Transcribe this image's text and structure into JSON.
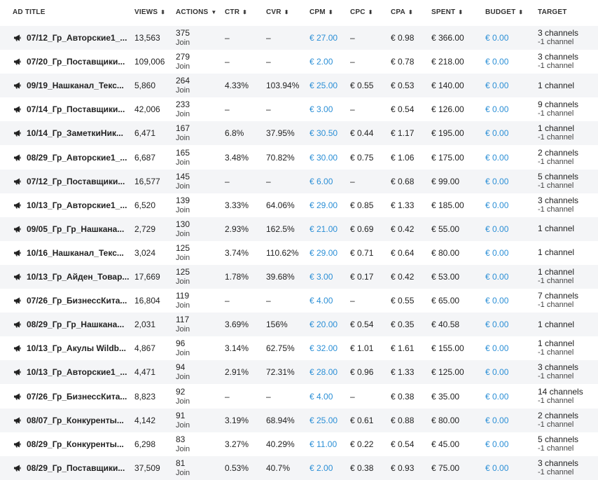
{
  "headers": {
    "title": "AD TITLE",
    "views": "VIEWS",
    "actions": "ACTIONS",
    "ctr": "CTR",
    "cvr": "CVR",
    "cpm": "CPM",
    "cpc": "CPC",
    "cpa": "CPA",
    "spent": "SPENT",
    "budget": "BUDGET",
    "target": "TARGET"
  },
  "icons": {
    "sort": "sort-updown-icon",
    "sort_active": "sort-down-icon",
    "ad": "megaphone-icon"
  },
  "colors": {
    "link_blue": "#2b8fd6",
    "alt_row": "#f4f5f7"
  },
  "rows": [
    {
      "title": "07/12_Гр_Авторские1_...",
      "views": "13,563",
      "actions": "375",
      "action_label": "Join",
      "ctr": "–",
      "cvr": "–",
      "cpm": "€ 27.00",
      "cpc": "–",
      "cpa": "€ 0.98",
      "spent": "€ 366.00",
      "budget": "€ 0.00",
      "target": "3 channels",
      "target_sub": "-1 channel"
    },
    {
      "title": "07/20_Гр_Поставщики...",
      "views": "109,006",
      "actions": "279",
      "action_label": "Join",
      "ctr": "–",
      "cvr": "–",
      "cpm": "€ 2.00",
      "cpc": "–",
      "cpa": "€ 0.78",
      "spent": "€ 218.00",
      "budget": "€ 0.00",
      "target": "3 channels",
      "target_sub": "-1 channel"
    },
    {
      "title": "09/19_Нашканал_Текс...",
      "views": "5,860",
      "actions": "264",
      "action_label": "Join",
      "ctr": "4.33%",
      "cvr": "103.94%",
      "cpm": "€ 25.00",
      "cpc": "€ 0.55",
      "cpa": "€ 0.53",
      "spent": "€ 140.00",
      "budget": "€ 0.00",
      "target": "1 channel",
      "target_sub": ""
    },
    {
      "title": "07/14_Гр_Поставщики...",
      "views": "42,006",
      "actions": "233",
      "action_label": "Join",
      "ctr": "–",
      "cvr": "–",
      "cpm": "€ 3.00",
      "cpc": "–",
      "cpa": "€ 0.54",
      "spent": "€ 126.00",
      "budget": "€ 0.00",
      "target": "9 channels",
      "target_sub": "-1 channel"
    },
    {
      "title": "10/14_Гр_ЗаметкиНик...",
      "views": "6,471",
      "actions": "167",
      "action_label": "Join",
      "ctr": "6.8%",
      "cvr": "37.95%",
      "cpm": "€ 30.50",
      "cpc": "€ 0.44",
      "cpa": "€ 1.17",
      "spent": "€ 195.00",
      "budget": "€ 0.00",
      "target": "1 channel",
      "target_sub": "-1 channel"
    },
    {
      "title": "08/29_Гр_Авторские1_...",
      "views": "6,687",
      "actions": "165",
      "action_label": "Join",
      "ctr": "3.48%",
      "cvr": "70.82%",
      "cpm": "€ 30.00",
      "cpc": "€ 0.75",
      "cpa": "€ 1.06",
      "spent": "€ 175.00",
      "budget": "€ 0.00",
      "target": "2 channels",
      "target_sub": "-1 channel"
    },
    {
      "title": "07/12_Гр_Поставщики...",
      "views": "16,577",
      "actions": "145",
      "action_label": "Join",
      "ctr": "–",
      "cvr": "–",
      "cpm": "€ 6.00",
      "cpc": "–",
      "cpa": "€ 0.68",
      "spent": "€ 99.00",
      "budget": "€ 0.00",
      "target": "5 channels",
      "target_sub": "-1 channel"
    },
    {
      "title": "10/13_Гр_Авторские1_...",
      "views": "6,520",
      "actions": "139",
      "action_label": "Join",
      "ctr": "3.33%",
      "cvr": "64.06%",
      "cpm": "€ 29.00",
      "cpc": "€ 0.85",
      "cpa": "€ 1.33",
      "spent": "€ 185.00",
      "budget": "€ 0.00",
      "target": "3 channels",
      "target_sub": "-1 channel"
    },
    {
      "title": "09/05_Гр_Гр_Нашкана...",
      "views": "2,729",
      "actions": "130",
      "action_label": "Join",
      "ctr": "2.93%",
      "cvr": "162.5%",
      "cpm": "€ 21.00",
      "cpc": "€ 0.69",
      "cpa": "€ 0.42",
      "spent": "€ 55.00",
      "budget": "€ 0.00",
      "target": "1 channel",
      "target_sub": ""
    },
    {
      "title": "10/16_Нашканал_Текс...",
      "views": "3,024",
      "actions": "125",
      "action_label": "Join",
      "ctr": "3.74%",
      "cvr": "110.62%",
      "cpm": "€ 29.00",
      "cpc": "€ 0.71",
      "cpa": "€ 0.64",
      "spent": "€ 80.00",
      "budget": "€ 0.00",
      "target": "1 channel",
      "target_sub": ""
    },
    {
      "title": "10/13_Гр_Айден_Товар...",
      "views": "17,669",
      "actions": "125",
      "action_label": "Join",
      "ctr": "1.78%",
      "cvr": "39.68%",
      "cpm": "€ 3.00",
      "cpc": "€ 0.17",
      "cpa": "€ 0.42",
      "spent": "€ 53.00",
      "budget": "€ 0.00",
      "target": "1 channel",
      "target_sub": "-1 channel"
    },
    {
      "title": "07/26_Гр_БизнессКита...",
      "views": "16,804",
      "actions": "119",
      "action_label": "Join",
      "ctr": "–",
      "cvr": "–",
      "cpm": "€ 4.00",
      "cpc": "–",
      "cpa": "€ 0.55",
      "spent": "€ 65.00",
      "budget": "€ 0.00",
      "target": "7 channels",
      "target_sub": "-1 channel"
    },
    {
      "title": "08/29_Гр_Гр_Нашкана...",
      "views": "2,031",
      "actions": "117",
      "action_label": "Join",
      "ctr": "3.69%",
      "cvr": "156%",
      "cpm": "€ 20.00",
      "cpc": "€ 0.54",
      "cpa": "€ 0.35",
      "spent": "€ 40.58",
      "budget": "€ 0.00",
      "target": "1 channel",
      "target_sub": ""
    },
    {
      "title": "10/13_Гр_Акулы Wildb...",
      "views": "4,867",
      "actions": "96",
      "action_label": "Join",
      "ctr": "3.14%",
      "cvr": "62.75%",
      "cpm": "€ 32.00",
      "cpc": "€ 1.01",
      "cpa": "€ 1.61",
      "spent": "€ 155.00",
      "budget": "€ 0.00",
      "target": "1 channel",
      "target_sub": "-1 channel"
    },
    {
      "title": "10/13_Гр_Авторские1_...",
      "views": "4,471",
      "actions": "94",
      "action_label": "Join",
      "ctr": "2.91%",
      "cvr": "72.31%",
      "cpm": "€ 28.00",
      "cpc": "€ 0.96",
      "cpa": "€ 1.33",
      "spent": "€ 125.00",
      "budget": "€ 0.00",
      "target": "3 channels",
      "target_sub": "-1 channel"
    },
    {
      "title": "07/26_Гр_БизнессКита...",
      "views": "8,823",
      "actions": "92",
      "action_label": "Join",
      "ctr": "–",
      "cvr": "–",
      "cpm": "€ 4.00",
      "cpc": "–",
      "cpa": "€ 0.38",
      "spent": "€ 35.00",
      "budget": "€ 0.00",
      "target": "14 channels",
      "target_sub": "-1 channel"
    },
    {
      "title": "08/07_Гр_Конкуренты...",
      "views": "4,142",
      "actions": "91",
      "action_label": "Join",
      "ctr": "3.19%",
      "cvr": "68.94%",
      "cpm": "€ 25.00",
      "cpc": "€ 0.61",
      "cpa": "€ 0.88",
      "spent": "€ 80.00",
      "budget": "€ 0.00",
      "target": "2 channels",
      "target_sub": "-1 channel"
    },
    {
      "title": "08/29_Гр_Конкуренты...",
      "views": "6,298",
      "actions": "83",
      "action_label": "Join",
      "ctr": "3.27%",
      "cvr": "40.29%",
      "cpm": "€ 11.00",
      "cpc": "€ 0.22",
      "cpa": "€ 0.54",
      "spent": "€ 45.00",
      "budget": "€ 0.00",
      "target": "5 channels",
      "target_sub": "-1 channel"
    },
    {
      "title": "08/29_Гр_Поставщики...",
      "views": "37,509",
      "actions": "81",
      "action_label": "Join",
      "ctr": "0.53%",
      "cvr": "40.7%",
      "cpm": "€ 2.00",
      "cpc": "€ 0.38",
      "cpa": "€ 0.93",
      "spent": "€ 75.00",
      "budget": "€ 0.00",
      "target": "3 channels",
      "target_sub": "-1 channel"
    }
  ]
}
